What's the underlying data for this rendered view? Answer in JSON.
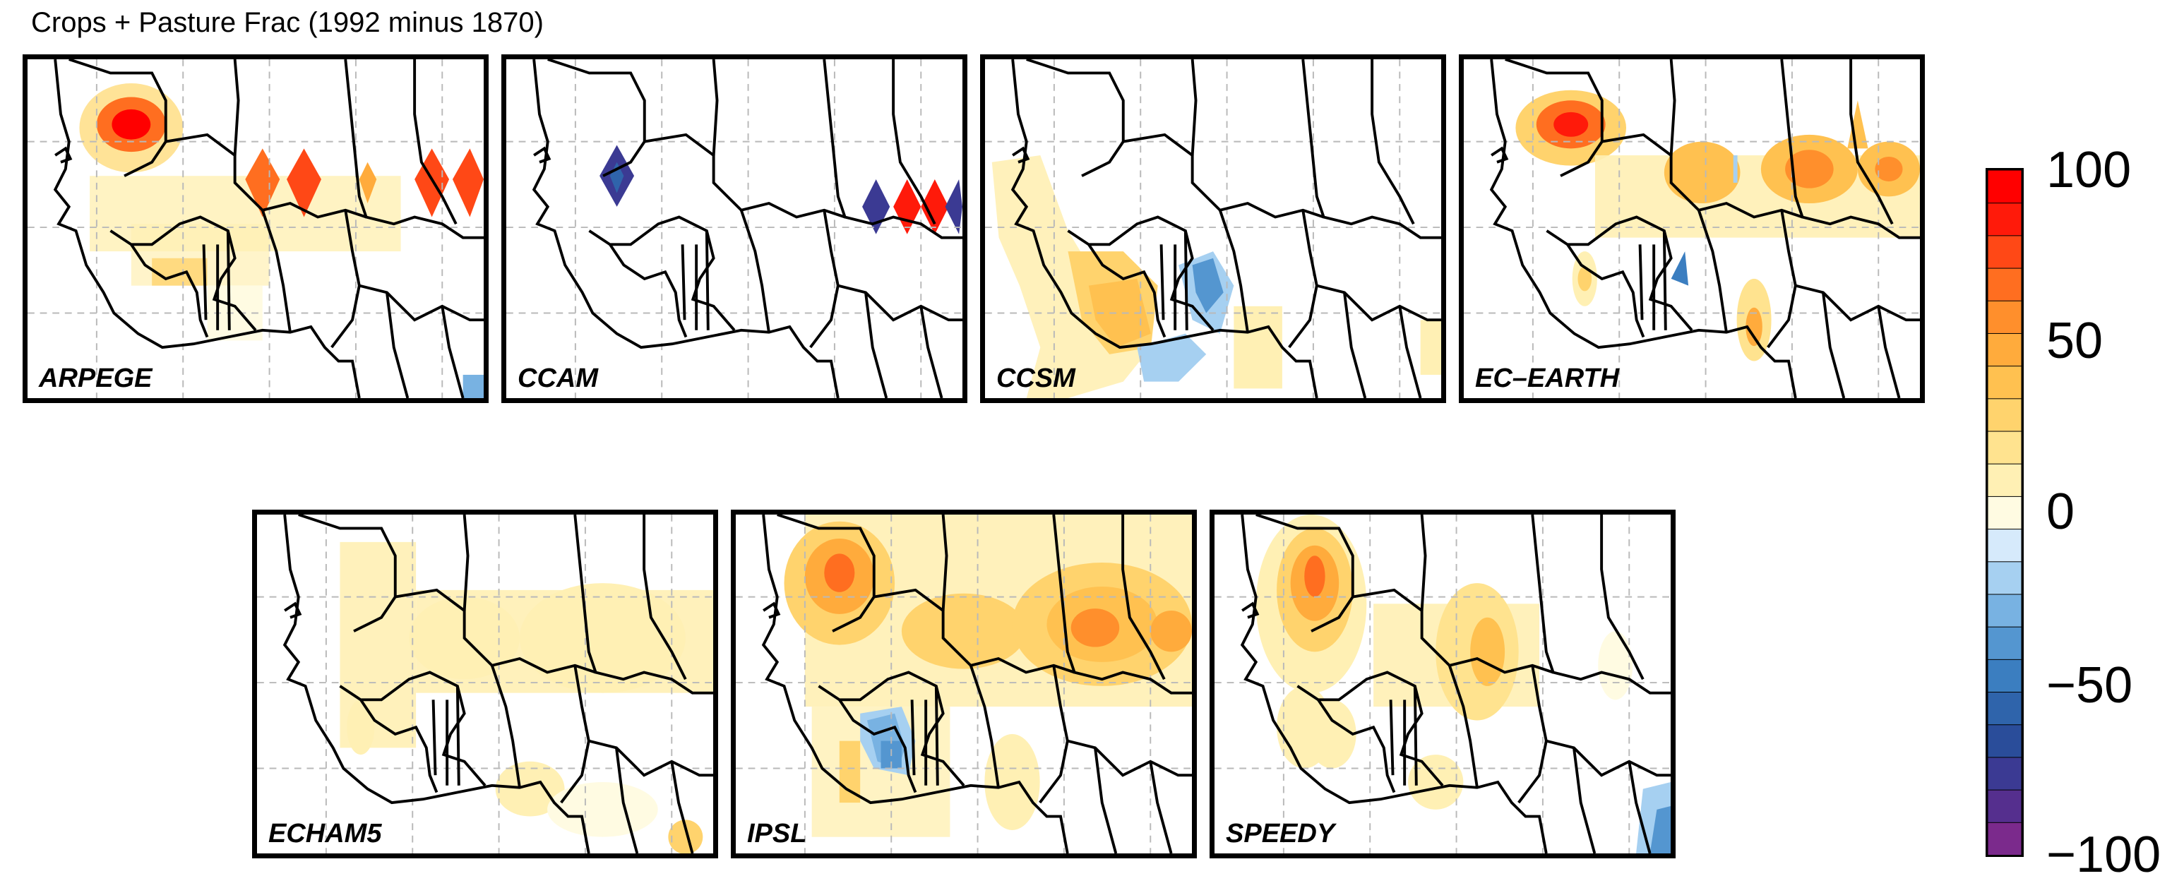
{
  "figure": {
    "title": "Crops + Pasture Frac (1992 minus 1870)"
  },
  "panels": [
    {
      "label": "ARPEGE"
    },
    {
      "label": "CCAM"
    },
    {
      "label": "CCSM"
    },
    {
      "label": "EC–EARTH"
    },
    {
      "label": "ECHAM5"
    },
    {
      "label": "IPSL"
    },
    {
      "label": "SPEEDY"
    }
  ],
  "colorbar": {
    "ticks": [
      "100",
      "50",
      "0",
      "−50",
      "−100"
    ],
    "range": [
      -100,
      100
    ],
    "colors": [
      "#7b2a8c",
      "#552f8e",
      "#3b3a93",
      "#2a4d9a",
      "#2f64ab",
      "#3b7ec0",
      "#5496d0",
      "#78b2e2",
      "#a6d0f1",
      "#d6eafb",
      "#fffbe2",
      "#fff0b4",
      "#ffe38f",
      "#ffd36d",
      "#ffc150",
      "#ffab3c",
      "#ff8f2c",
      "#ff6e20",
      "#ff4816",
      "#ff1a0a",
      "#ff0000"
    ]
  },
  "colors": {
    "coastline": "#000000",
    "grid": "#b9b9b9"
  }
}
